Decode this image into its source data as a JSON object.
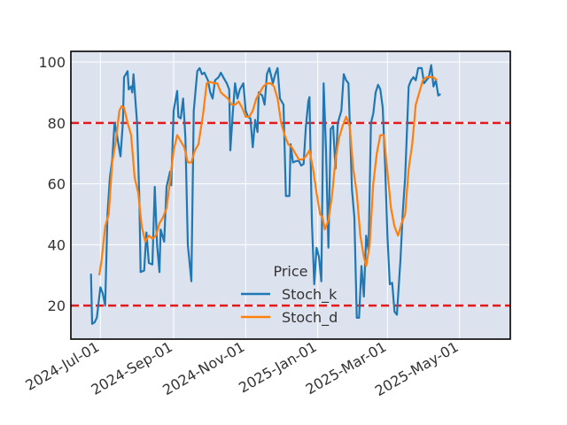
{
  "chart_data": {
    "type": "line",
    "title": "",
    "xlabel": "",
    "ylabel": "",
    "x_axis": "date",
    "xlim": [
      "2024-06-06",
      "2025-06-13"
    ],
    "ylim": [
      9,
      103.5
    ],
    "x_ticks": [
      {
        "date": "2024-07-01",
        "label": "2024-Jul-01"
      },
      {
        "date": "2024-09-01",
        "label": "2024-Sep-01"
      },
      {
        "date": "2024-11-01",
        "label": "2024-Nov-01"
      },
      {
        "date": "2025-01-01",
        "label": "2025-Jan-01"
      },
      {
        "date": "2025-03-01",
        "label": "2025-Mar-01"
      },
      {
        "date": "2025-05-01",
        "label": "2025-May-01"
      }
    ],
    "y_ticks": [
      20,
      40,
      60,
      80,
      100
    ],
    "grid": true,
    "legend": {
      "title": "Price",
      "position": "lower-center"
    },
    "reference_lines": [
      {
        "y": 80,
        "color": "#e31a1c",
        "style": "dashed"
      },
      {
        "y": 20,
        "color": "#e31a1c",
        "style": "dashed"
      }
    ],
    "series": [
      {
        "name": "Stoch_k",
        "color": "#1f77b4",
        "points": [
          [
            "2024-06-23",
            30.5
          ],
          [
            "2024-06-24",
            14.0
          ],
          [
            "2024-06-26",
            14.5
          ],
          [
            "2024-06-28",
            16.0
          ],
          [
            "2024-07-01",
            26.0
          ],
          [
            "2024-07-03",
            24.0
          ],
          [
            "2024-07-05",
            20.0
          ],
          [
            "2024-07-07",
            50.0
          ],
          [
            "2024-07-09",
            62.0
          ],
          [
            "2024-07-11",
            68.0
          ],
          [
            "2024-07-13",
            80.0
          ],
          [
            "2024-07-15",
            76.0
          ],
          [
            "2024-07-18",
            69.0
          ],
          [
            "2024-07-20",
            80.0
          ],
          [
            "2024-07-21",
            95.0
          ],
          [
            "2024-07-24",
            97.0
          ],
          [
            "2024-07-25",
            91.0
          ],
          [
            "2024-07-27",
            92.0
          ],
          [
            "2024-07-28",
            90.0
          ],
          [
            "2024-07-29",
            96.0
          ],
          [
            "2024-08-01",
            80.0
          ],
          [
            "2024-08-03",
            55.0
          ],
          [
            "2024-08-04",
            31.0
          ],
          [
            "2024-08-07",
            31.5
          ],
          [
            "2024-08-09",
            44.0
          ],
          [
            "2024-08-11",
            34.0
          ],
          [
            "2024-08-14",
            33.5
          ],
          [
            "2024-08-16",
            59.0
          ],
          [
            "2024-08-18",
            40.0
          ],
          [
            "2024-08-20",
            31.0
          ],
          [
            "2024-08-21",
            45.0
          ],
          [
            "2024-08-24",
            41.0
          ],
          [
            "2024-08-26",
            59.0
          ],
          [
            "2024-08-29",
            64.0
          ],
          [
            "2024-08-30",
            59.5
          ],
          [
            "2024-09-01",
            84.0
          ],
          [
            "2024-09-04",
            90.5
          ],
          [
            "2024-09-05",
            82.0
          ],
          [
            "2024-09-07",
            81.5
          ],
          [
            "2024-09-09",
            88.0
          ],
          [
            "2024-09-11",
            75.0
          ],
          [
            "2024-09-13",
            40.0
          ],
          [
            "2024-09-16",
            28.0
          ],
          [
            "2024-09-18",
            84.0
          ],
          [
            "2024-09-21",
            97.0
          ],
          [
            "2024-09-23",
            98.0
          ],
          [
            "2024-09-25",
            96.0
          ],
          [
            "2024-09-27",
            96.5
          ],
          [
            "2024-09-30",
            94.0
          ],
          [
            "2024-10-02",
            90.0
          ],
          [
            "2024-10-04",
            88.0
          ],
          [
            "2024-10-06",
            94.0
          ],
          [
            "2024-10-09",
            95.0
          ],
          [
            "2024-10-11",
            96.5
          ],
          [
            "2024-10-13",
            95.0
          ],
          [
            "2024-10-16",
            93.0
          ],
          [
            "2024-10-18",
            91.0
          ],
          [
            "2024-10-19",
            71.0
          ],
          [
            "2024-10-21",
            83.0
          ],
          [
            "2024-10-23",
            93.0
          ],
          [
            "2024-10-25",
            88.0
          ],
          [
            "2024-10-27",
            91.0
          ],
          [
            "2024-10-30",
            93.0
          ],
          [
            "2024-11-01",
            84.0
          ],
          [
            "2024-11-03",
            82.0
          ],
          [
            "2024-11-05",
            81.5
          ],
          [
            "2024-11-07",
            72.0
          ],
          [
            "2024-11-09",
            81.0
          ],
          [
            "2024-11-11",
            77.0
          ],
          [
            "2024-11-12",
            90.0
          ],
          [
            "2024-11-15",
            89.0
          ],
          [
            "2024-11-17",
            86.0
          ],
          [
            "2024-11-19",
            96.0
          ],
          [
            "2024-11-21",
            98.0
          ],
          [
            "2024-11-24",
            93.0
          ],
          [
            "2024-11-26",
            96.0
          ],
          [
            "2024-11-28",
            98.0
          ],
          [
            "2024-11-30",
            88.0
          ],
          [
            "2024-12-03",
            86.0
          ],
          [
            "2024-12-05",
            56.0
          ],
          [
            "2024-12-08",
            56.0
          ],
          [
            "2024-12-09",
            73.0
          ],
          [
            "2024-12-11",
            67.0
          ],
          [
            "2024-12-14",
            67.5
          ],
          [
            "2024-12-16",
            67.5
          ],
          [
            "2024-12-18",
            66.0
          ],
          [
            "2024-12-20",
            66.5
          ],
          [
            "2024-12-22",
            79.0
          ],
          [
            "2024-12-24",
            87.0
          ],
          [
            "2024-12-25",
            88.5
          ],
          [
            "2024-12-27",
            48.0
          ],
          [
            "2024-12-29",
            27.0
          ],
          [
            "2024-12-31",
            39.0
          ],
          [
            "2025-01-02",
            36.0
          ],
          [
            "2025-01-04",
            28.0
          ],
          [
            "2025-01-06",
            93.0
          ],
          [
            "2025-01-08",
            71.0
          ],
          [
            "2025-01-10",
            39.0
          ],
          [
            "2025-01-12",
            78.0
          ],
          [
            "2025-01-14",
            79.0
          ],
          [
            "2025-01-16",
            65.0
          ],
          [
            "2025-01-18",
            80.0
          ],
          [
            "2025-01-21",
            84.0
          ],
          [
            "2025-01-23",
            96.0
          ],
          [
            "2025-01-25",
            94.0
          ],
          [
            "2025-01-27",
            93.0
          ],
          [
            "2025-01-30",
            58.0
          ],
          [
            "2025-02-01",
            49.0
          ],
          [
            "2025-02-03",
            16.0
          ],
          [
            "2025-02-05",
            16.0
          ],
          [
            "2025-02-07",
            33.0
          ],
          [
            "2025-02-09",
            23.0
          ],
          [
            "2025-02-11",
            43.0
          ],
          [
            "2025-02-13",
            38.0
          ],
          [
            "2025-02-15",
            80.0
          ],
          [
            "2025-02-17",
            83.0
          ],
          [
            "2025-02-19",
            90.0
          ],
          [
            "2025-02-21",
            92.5
          ],
          [
            "2025-02-23",
            91.0
          ],
          [
            "2025-02-25",
            85.0
          ],
          [
            "2025-02-27",
            66.0
          ],
          [
            "2025-03-01",
            43.0
          ],
          [
            "2025-03-03",
            27.0
          ],
          [
            "2025-03-05",
            27.5
          ],
          [
            "2025-03-07",
            18.0
          ],
          [
            "2025-03-09",
            17.0
          ],
          [
            "2025-03-12",
            35.0
          ],
          [
            "2025-03-14",
            51.0
          ],
          [
            "2025-03-16",
            62.0
          ],
          [
            "2025-03-19",
            92.0
          ],
          [
            "2025-03-21",
            94.0
          ],
          [
            "2025-03-23",
            95.0
          ],
          [
            "2025-03-25",
            94.0
          ],
          [
            "2025-03-27",
            98.0
          ],
          [
            "2025-03-30",
            98.0
          ],
          [
            "2025-04-01",
            93.0
          ],
          [
            "2025-04-03",
            94.0
          ],
          [
            "2025-04-05",
            95.0
          ],
          [
            "2025-04-07",
            99.0
          ],
          [
            "2025-04-09",
            92.0
          ],
          [
            "2025-04-11",
            94.0
          ],
          [
            "2025-04-13",
            89.0
          ],
          [
            "2025-04-15",
            89.5
          ]
        ]
      },
      {
        "name": "Stoch_d",
        "color": "#ff7f0e",
        "points": [
          [
            "2024-06-30",
            30.0
          ],
          [
            "2024-07-02",
            35.0
          ],
          [
            "2024-07-05",
            46.0
          ],
          [
            "2024-07-08",
            50.0
          ],
          [
            "2024-07-11",
            67.0
          ],
          [
            "2024-07-14",
            74.0
          ],
          [
            "2024-07-17",
            84.0
          ],
          [
            "2024-07-19",
            85.5
          ],
          [
            "2024-07-21",
            85.0
          ],
          [
            "2024-07-24",
            80.0
          ],
          [
            "2024-07-27",
            76.0
          ],
          [
            "2024-07-30",
            62.0
          ],
          [
            "2024-08-02",
            57.0
          ],
          [
            "2024-08-05",
            46.0
          ],
          [
            "2024-08-08",
            41.0
          ],
          [
            "2024-08-11",
            43.0
          ],
          [
            "2024-08-14",
            42.0
          ],
          [
            "2024-08-17",
            43.0
          ],
          [
            "2024-08-20",
            47.0
          ],
          [
            "2024-08-23",
            49.0
          ],
          [
            "2024-08-26",
            52.0
          ],
          [
            "2024-08-29",
            61.0
          ],
          [
            "2024-09-01",
            71.0
          ],
          [
            "2024-09-04",
            76.0
          ],
          [
            "2024-09-07",
            74.0
          ],
          [
            "2024-09-10",
            72.0
          ],
          [
            "2024-09-13",
            67.0
          ],
          [
            "2024-09-16",
            67.0
          ],
          [
            "2024-09-19",
            71.0
          ],
          [
            "2024-09-22",
            73.0
          ],
          [
            "2024-09-26",
            83.0
          ],
          [
            "2024-09-29",
            93.0
          ],
          [
            "2024-10-02",
            93.5
          ],
          [
            "2024-10-05",
            93.0
          ],
          [
            "2024-10-08",
            93.0
          ],
          [
            "2024-10-11",
            90.0
          ],
          [
            "2024-10-14",
            89.0
          ],
          [
            "2024-10-17",
            88.0
          ],
          [
            "2024-10-20",
            86.0
          ],
          [
            "2024-10-23",
            86.0
          ],
          [
            "2024-10-26",
            87.0
          ],
          [
            "2024-10-29",
            85.0
          ],
          [
            "2024-11-01",
            82.0
          ],
          [
            "2024-11-04",
            82.0
          ],
          [
            "2024-11-07",
            84.0
          ],
          [
            "2024-11-10",
            88.0
          ],
          [
            "2024-11-13",
            90.0
          ],
          [
            "2024-11-16",
            92.0
          ],
          [
            "2024-11-19",
            93.0
          ],
          [
            "2024-11-22",
            93.0
          ],
          [
            "2024-11-25",
            92.0
          ],
          [
            "2024-11-28",
            88.0
          ],
          [
            "2024-12-01",
            80.0
          ],
          [
            "2024-12-04",
            76.0
          ],
          [
            "2024-12-07",
            73.0
          ],
          [
            "2024-12-10",
            72.0
          ],
          [
            "2024-12-13",
            70.0
          ],
          [
            "2024-12-16",
            68.0
          ],
          [
            "2024-12-19",
            68.0
          ],
          [
            "2024-12-22",
            69.0
          ],
          [
            "2024-12-25",
            71.0
          ],
          [
            "2024-12-28",
            65.0
          ],
          [
            "2024-12-31",
            57.0
          ],
          [
            "2025-01-03",
            50.0
          ],
          [
            "2025-01-05",
            49.0
          ],
          [
            "2025-01-07",
            45.0
          ],
          [
            "2025-01-10",
            48.0
          ],
          [
            "2025-01-13",
            56.0
          ],
          [
            "2025-01-16",
            68.0
          ],
          [
            "2025-01-19",
            75.0
          ],
          [
            "2025-01-22",
            79.0
          ],
          [
            "2025-01-25",
            82.0
          ],
          [
            "2025-01-28",
            79.0
          ],
          [
            "2025-01-31",
            65.0
          ],
          [
            "2025-02-03",
            57.0
          ],
          [
            "2025-02-06",
            43.0
          ],
          [
            "2025-02-09",
            36.0
          ],
          [
            "2025-02-11",
            33.0
          ],
          [
            "2025-02-14",
            40.0
          ],
          [
            "2025-02-17",
            60.0
          ],
          [
            "2025-02-20",
            70.0
          ],
          [
            "2025-02-23",
            76.0
          ],
          [
            "2025-02-26",
            76.0
          ],
          [
            "2025-03-01",
            64.0
          ],
          [
            "2025-03-04",
            52.0
          ],
          [
            "2025-03-07",
            46.0
          ],
          [
            "2025-03-10",
            43.0
          ],
          [
            "2025-03-13",
            47.0
          ],
          [
            "2025-03-16",
            50.0
          ],
          [
            "2025-03-19",
            65.0
          ],
          [
            "2025-03-22",
            73.0
          ],
          [
            "2025-03-25",
            86.0
          ],
          [
            "2025-03-28",
            90.0
          ],
          [
            "2025-03-31",
            94.0
          ],
          [
            "2025-04-03",
            95.0
          ],
          [
            "2025-04-06",
            95.0
          ],
          [
            "2025-04-09",
            95.0
          ],
          [
            "2025-04-12",
            94.0
          ]
        ]
      }
    ]
  }
}
